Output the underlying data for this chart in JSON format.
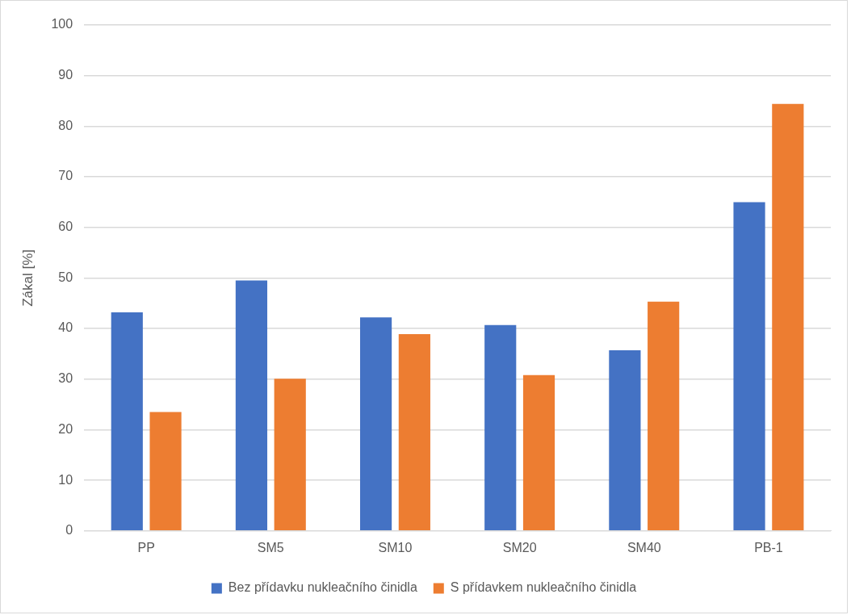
{
  "chart_data": {
    "type": "bar",
    "ylabel": "Zákal [%]",
    "categories": [
      "PP",
      "SM5",
      "SM10",
      "SM20",
      "SM40",
      "PB-1"
    ],
    "series": [
      {
        "name": "Bez přídavku nukleačního činidla",
        "color": "#4472c4",
        "values": [
          43.2,
          49.5,
          42.2,
          40.7,
          35.7,
          65.0
        ]
      },
      {
        "name": "S přídavkem nukleačního činidla",
        "color": "#ed7d31",
        "values": [
          23.5,
          30.1,
          38.9,
          30.8,
          45.3,
          84.4
        ]
      }
    ],
    "ylim": [
      0,
      100
    ],
    "yticks": [
      0,
      10,
      20,
      30,
      40,
      50,
      60,
      70,
      80,
      90,
      100
    ],
    "grid": "y",
    "legend": "bottom"
  }
}
